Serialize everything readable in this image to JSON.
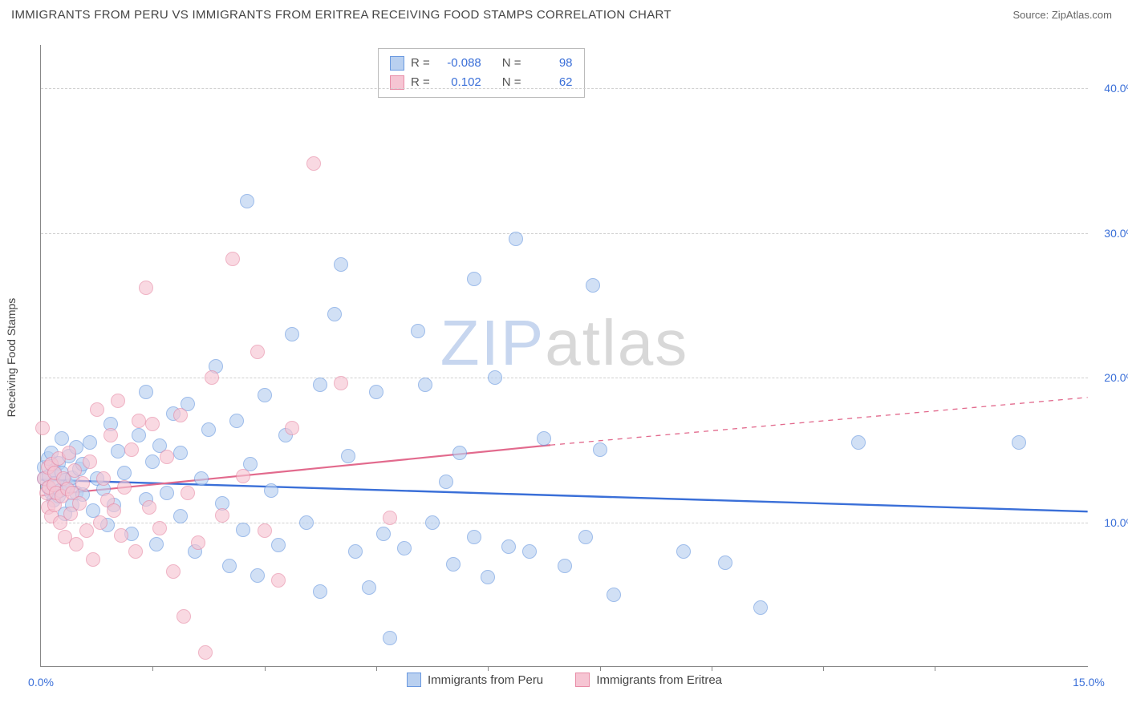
{
  "title": "IMMIGRANTS FROM PERU VS IMMIGRANTS FROM ERITREA RECEIVING FOOD STAMPS CORRELATION CHART",
  "source_label": "Source: ",
  "source_value": "ZipAtlas.com",
  "y_axis_label": "Receiving Food Stamps",
  "watermark": {
    "part1": "ZIP",
    "part2": "atlas"
  },
  "chart": {
    "type": "scatter",
    "background_color": "#ffffff",
    "xlim": [
      0,
      15
    ],
    "ylim": [
      0,
      43
    ],
    "x_ticks": [
      0,
      15
    ],
    "x_tick_labels": [
      "0.0%",
      "15.0%"
    ],
    "x_minor_ticks": [
      1.6,
      3.2,
      4.8,
      6.4,
      8.0,
      9.6,
      11.2,
      12.8
    ],
    "y_ticks": [
      10,
      20,
      30,
      40
    ],
    "y_tick_labels": [
      "10.0%",
      "20.0%",
      "30.0%",
      "40.0%"
    ],
    "y_tick_color": "#3a6fd8",
    "x_tick_color": "#3a6fd8",
    "grid_color": "#d0d0d0",
    "marker_radius": 9,
    "series": [
      {
        "name": "Immigrants from Peru",
        "fill_color": "#b9d0f0",
        "stroke_color": "#6a99e0",
        "fill_opacity": 0.65,
        "R": "-0.088",
        "N": "98",
        "trend": {
          "x1": 0,
          "y1": 12.9,
          "x2": 15,
          "y2": 10.7,
          "dash_after_x": 15,
          "color": "#3a6fd8",
          "width": 2.4
        },
        "points": [
          [
            0.05,
            13.8
          ],
          [
            0.05,
            13.0
          ],
          [
            0.1,
            12.4
          ],
          [
            0.1,
            14.4
          ],
          [
            0.12,
            13.2
          ],
          [
            0.15,
            12.0
          ],
          [
            0.15,
            14.8
          ],
          [
            0.18,
            11.5
          ],
          [
            0.2,
            13.6
          ],
          [
            0.2,
            12.7
          ],
          [
            0.25,
            14.1
          ],
          [
            0.25,
            11.8
          ],
          [
            0.28,
            12.2
          ],
          [
            0.3,
            13.4
          ],
          [
            0.3,
            15.8
          ],
          [
            0.35,
            12.9
          ],
          [
            0.35,
            10.6
          ],
          [
            0.4,
            12.5
          ],
          [
            0.4,
            14.6
          ],
          [
            0.45,
            13.1
          ],
          [
            0.45,
            11.2
          ],
          [
            0.5,
            12.0
          ],
          [
            0.5,
            15.2
          ],
          [
            0.55,
            13.7
          ],
          [
            0.6,
            11.9
          ],
          [
            0.6,
            14.0
          ],
          [
            0.7,
            15.5
          ],
          [
            0.75,
            10.8
          ],
          [
            0.8,
            13.0
          ],
          [
            0.9,
            12.3
          ],
          [
            0.95,
            9.8
          ],
          [
            1.0,
            16.8
          ],
          [
            1.05,
            11.2
          ],
          [
            1.1,
            14.9
          ],
          [
            1.2,
            13.4
          ],
          [
            1.3,
            9.2
          ],
          [
            1.4,
            16.0
          ],
          [
            1.5,
            11.6
          ],
          [
            1.5,
            19.0
          ],
          [
            1.6,
            14.2
          ],
          [
            1.65,
            8.5
          ],
          [
            1.7,
            15.3
          ],
          [
            1.8,
            12.0
          ],
          [
            1.9,
            17.5
          ],
          [
            2.0,
            10.4
          ],
          [
            2.0,
            14.8
          ],
          [
            2.1,
            18.2
          ],
          [
            2.2,
            8.0
          ],
          [
            2.3,
            13.0
          ],
          [
            2.4,
            16.4
          ],
          [
            2.5,
            20.8
          ],
          [
            2.6,
            11.3
          ],
          [
            2.7,
            7.0
          ],
          [
            2.8,
            17.0
          ],
          [
            2.9,
            9.5
          ],
          [
            2.95,
            32.2
          ],
          [
            3.0,
            14.0
          ],
          [
            3.1,
            6.3
          ],
          [
            3.2,
            18.8
          ],
          [
            3.3,
            12.2
          ],
          [
            3.4,
            8.4
          ],
          [
            3.5,
            16.0
          ],
          [
            3.6,
            23.0
          ],
          [
            3.8,
            10.0
          ],
          [
            4.0,
            19.5
          ],
          [
            4.0,
            5.2
          ],
          [
            4.2,
            24.4
          ],
          [
            4.3,
            27.8
          ],
          [
            4.4,
            14.6
          ],
          [
            4.5,
            8.0
          ],
          [
            4.7,
            5.5
          ],
          [
            4.8,
            19.0
          ],
          [
            4.9,
            9.2
          ],
          [
            5.0,
            2.0
          ],
          [
            5.2,
            8.2
          ],
          [
            5.4,
            23.2
          ],
          [
            5.5,
            19.5
          ],
          [
            5.6,
            10.0
          ],
          [
            5.8,
            12.8
          ],
          [
            5.9,
            7.1
          ],
          [
            6.0,
            14.8
          ],
          [
            6.2,
            9.0
          ],
          [
            6.2,
            26.8
          ],
          [
            6.4,
            6.2
          ],
          [
            6.5,
            20.0
          ],
          [
            6.7,
            8.3
          ],
          [
            6.8,
            29.6
          ],
          [
            7.0,
            8.0
          ],
          [
            7.2,
            15.8
          ],
          [
            7.5,
            7.0
          ],
          [
            7.8,
            9.0
          ],
          [
            7.9,
            26.4
          ],
          [
            8.0,
            15.0
          ],
          [
            8.2,
            5.0
          ],
          [
            9.2,
            8.0
          ],
          [
            9.8,
            7.2
          ],
          [
            10.3,
            4.1
          ],
          [
            11.7,
            15.5
          ],
          [
            14.0,
            15.5
          ]
        ]
      },
      {
        "name": "Immigrants from Eritrea",
        "fill_color": "#f6c5d3",
        "stroke_color": "#e88ba6",
        "fill_opacity": 0.65,
        "R": "0.102",
        "N": "62",
        "trend": {
          "x1": 0,
          "y1": 11.8,
          "x2": 7.3,
          "y2": 15.3,
          "dash_after_x": 7.3,
          "dash_x2": 15,
          "dash_y2": 18.6,
          "color": "#e26a8d",
          "width": 2.2
        },
        "points": [
          [
            0.02,
            16.5
          ],
          [
            0.05,
            13.0
          ],
          [
            0.08,
            12.0
          ],
          [
            0.1,
            11.0
          ],
          [
            0.1,
            13.8
          ],
          [
            0.12,
            12.4
          ],
          [
            0.15,
            14.0
          ],
          [
            0.15,
            10.4
          ],
          [
            0.18,
            12.6
          ],
          [
            0.2,
            13.4
          ],
          [
            0.2,
            11.2
          ],
          [
            0.22,
            12.0
          ],
          [
            0.25,
            14.4
          ],
          [
            0.28,
            10.0
          ],
          [
            0.3,
            11.8
          ],
          [
            0.32,
            13.0
          ],
          [
            0.35,
            9.0
          ],
          [
            0.38,
            12.3
          ],
          [
            0.4,
            14.8
          ],
          [
            0.42,
            10.6
          ],
          [
            0.45,
            12.0
          ],
          [
            0.48,
            13.6
          ],
          [
            0.5,
            8.5
          ],
          [
            0.55,
            11.3
          ],
          [
            0.6,
            12.7
          ],
          [
            0.65,
            9.4
          ],
          [
            0.7,
            14.2
          ],
          [
            0.75,
            7.4
          ],
          [
            0.8,
            17.8
          ],
          [
            0.85,
            10.0
          ],
          [
            0.9,
            13.0
          ],
          [
            0.95,
            11.5
          ],
          [
            1.0,
            16.0
          ],
          [
            1.05,
            10.8
          ],
          [
            1.1,
            18.4
          ],
          [
            1.15,
            9.1
          ],
          [
            1.2,
            12.4
          ],
          [
            1.3,
            15.0
          ],
          [
            1.35,
            8.0
          ],
          [
            1.4,
            17.0
          ],
          [
            1.5,
            26.2
          ],
          [
            1.55,
            11.0
          ],
          [
            1.6,
            16.8
          ],
          [
            1.7,
            9.6
          ],
          [
            1.8,
            14.5
          ],
          [
            1.9,
            6.6
          ],
          [
            2.0,
            17.4
          ],
          [
            2.05,
            3.5
          ],
          [
            2.1,
            12.0
          ],
          [
            2.25,
            8.6
          ],
          [
            2.35,
            1.0
          ],
          [
            2.45,
            20.0
          ],
          [
            2.6,
            10.5
          ],
          [
            2.75,
            28.2
          ],
          [
            2.9,
            13.2
          ],
          [
            3.1,
            21.8
          ],
          [
            3.2,
            9.4
          ],
          [
            3.4,
            6.0
          ],
          [
            3.6,
            16.5
          ],
          [
            3.9,
            34.8
          ],
          [
            4.3,
            19.6
          ],
          [
            5.0,
            10.3
          ]
        ]
      }
    ],
    "stats_box": {
      "R_label": "R =",
      "N_label": "N ="
    }
  }
}
